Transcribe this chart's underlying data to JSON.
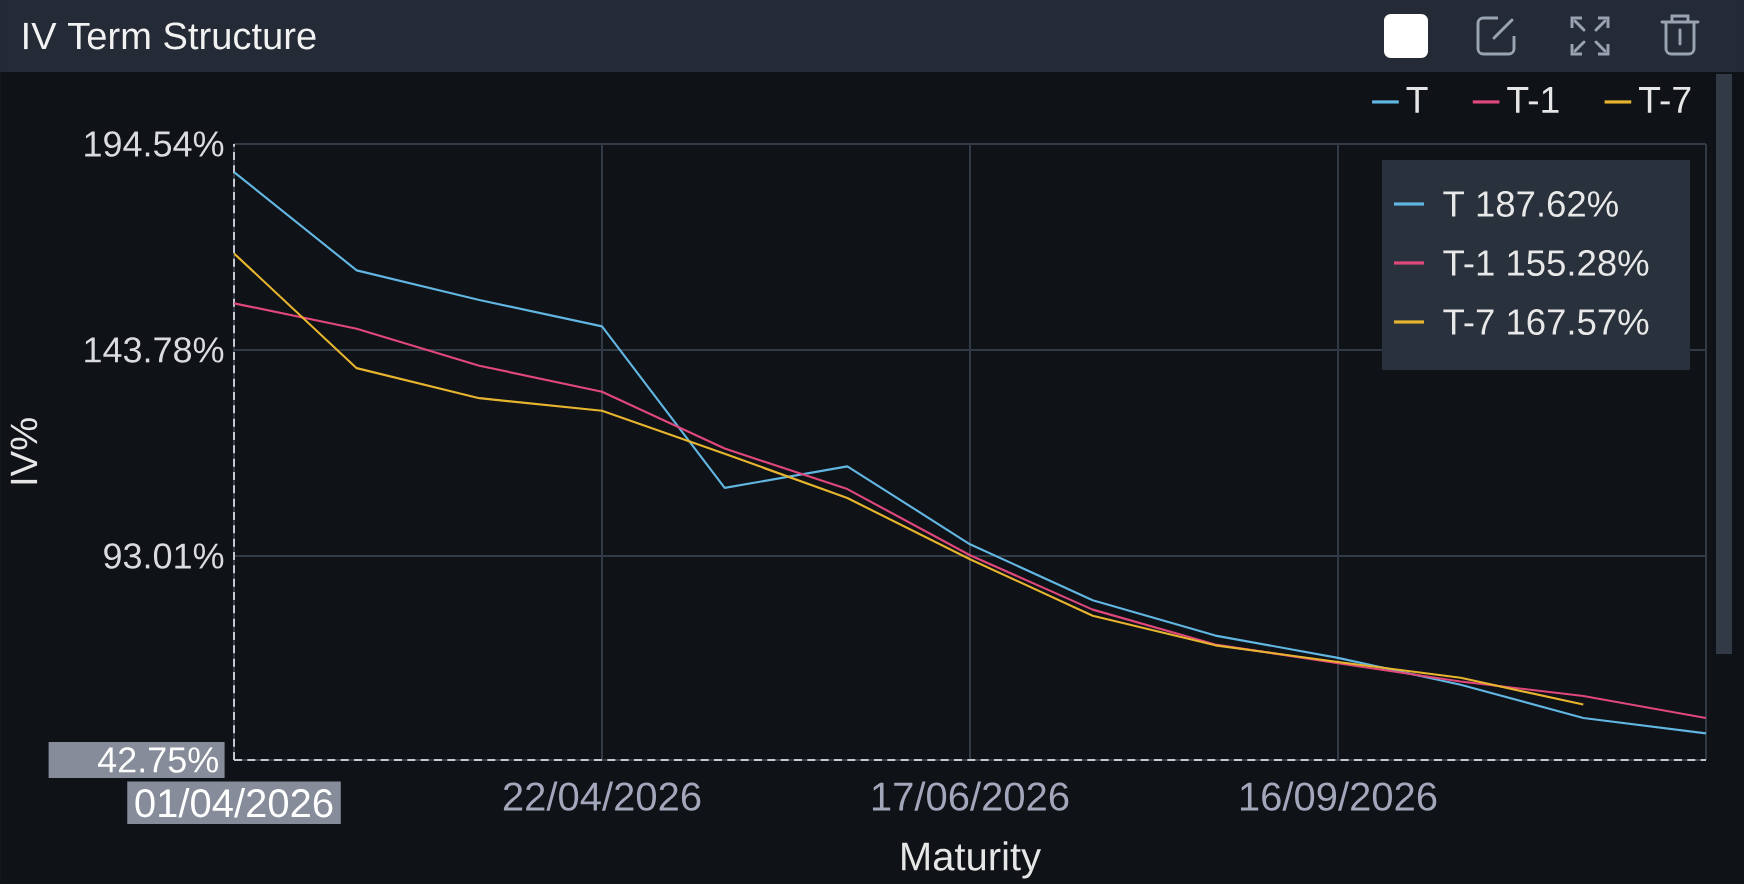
{
  "chart_data": {
    "type": "line",
    "title": "IV Term Structure",
    "xlabel": "Maturity",
    "ylabel": "IV%",
    "categories": [
      "01/04/2026",
      null,
      null,
      "22/04/2026",
      null,
      null,
      "17/06/2026",
      null,
      null,
      "16/09/2026",
      null,
      null,
      null
    ],
    "series": [
      {
        "name": "T",
        "color": "#62b6e2",
        "values": [
          187.62,
          163.4,
          156.1,
          149.6,
          109.8,
          115.1,
          95.9,
          82.1,
          73.4,
          67.9,
          61.3,
          53.1,
          49.3
        ]
      },
      {
        "name": "T-1",
        "color": "#e0487b",
        "values": [
          155.28,
          149.0,
          139.9,
          133.5,
          119.5,
          109.5,
          93.2,
          79.8,
          71.2,
          66.6,
          62.1,
          58.5,
          53.1
        ]
      },
      {
        "name": "T-7",
        "color": "#e6b42e",
        "values": [
          167.57,
          139.3,
          131.9,
          128.8,
          118.2,
          107.3,
          92.2,
          78.3,
          71.0,
          66.9,
          63.0,
          56.4,
          null
        ]
      }
    ],
    "ylim": [
      42.75,
      194.54
    ],
    "yticks": [
      {
        "value": 42.75,
        "label": "42.75%"
      },
      {
        "value": 93.01,
        "label": "93.01%"
      },
      {
        "value": 143.78,
        "label": "143.78%"
      },
      {
        "value": 194.54,
        "label": "194.54%"
      }
    ],
    "annotations": [
      "T 187.62%",
      "T-1 155.28%",
      "T-7 167.57%"
    ],
    "grid": true,
    "legend": "top right"
  }
}
